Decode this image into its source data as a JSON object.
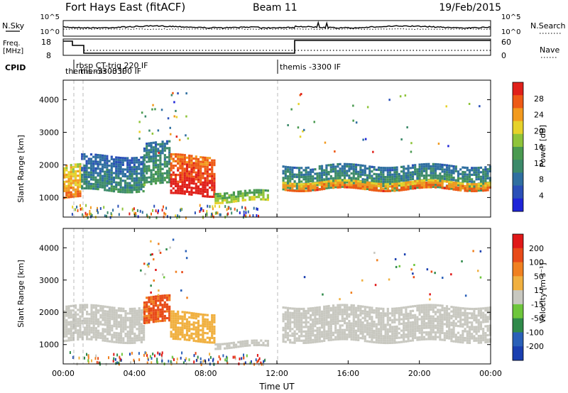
{
  "header": {
    "station": "Fort Hays East (fitACF)",
    "beam": "Beam 11",
    "date": "19/Feb/2015"
  },
  "noise_panel": {
    "left_label": "N.Sky",
    "left_ticks": [
      "10^5",
      "10^0"
    ],
    "right_label": "N.Search",
    "right_ticks": [
      "10^5",
      "10^0"
    ]
  },
  "freq_panel": {
    "left_label_line1": "Freq.",
    "left_label_line2": "[MHz]",
    "left_ticks": [
      "18",
      "8"
    ],
    "right_label": "Nave",
    "right_ticks": [
      "60",
      "0"
    ]
  },
  "cpid": {
    "label": "CPID",
    "entries": [
      {
        "time": 0.3,
        "text": "rbsp CT-trig 220 IF"
      },
      {
        "time": 0.0,
        "text": "themis -3300 IF"
      },
      {
        "time": 0.6,
        "text": "themis -3300 IF"
      },
      {
        "time": 12.0,
        "text": "themis -3300 IF"
      }
    ]
  },
  "x_axis": {
    "label": "Time UT",
    "ticks": [
      "00:00",
      "04:00",
      "08:00",
      "12:00",
      "16:00",
      "20:00",
      "00:00"
    ]
  },
  "power_panel": {
    "ylabel": "Slant Range [km]",
    "yticks": [
      "1000",
      "2000",
      "3000",
      "4000"
    ],
    "colorbar_label": "Power [dB]",
    "colorbar_ticks": [
      "28",
      "24",
      "20",
      "16",
      "12",
      "8",
      "4"
    ]
  },
  "velocity_panel": {
    "ylabel": "Slant Range [km]",
    "yticks": [
      "1000",
      "2000",
      "3000",
      "4000"
    ],
    "colorbar_label": "Velocity [m s⁻¹]",
    "colorbar_ticks": [
      "200",
      "100",
      "50",
      "15",
      "-15",
      "-50",
      "-100",
      "-200"
    ]
  },
  "colors": {
    "power_scale": [
      "#1e24d8",
      "#2a4fb8",
      "#2f6fa0",
      "#3c8a6a",
      "#4a9a50",
      "#8fc43a",
      "#e6d22a",
      "#f29a1e",
      "#ee5a16",
      "#e0201a"
    ],
    "velocity_scale": [
      "#1a3fb0",
      "#2a60b8",
      "#2f8a4a",
      "#6ec63c",
      "#c8c8c0",
      "#f0b040",
      "#f08020",
      "#e84a18",
      "#e01818"
    ]
  },
  "chart_data": [
    {
      "type": "heatmap",
      "title": "Power",
      "xlabel": "Time UT",
      "ylabel": "Slant Range [km]",
      "xlim": [
        0,
        24
      ],
      "ylim": [
        400,
        4600
      ],
      "colorbar": {
        "label": "Power [dB]",
        "range": [
          0,
          32
        ]
      },
      "regions": [
        {
          "t0": 0.0,
          "t1": 1.0,
          "r0": 1000,
          "r1": 2000,
          "level": 20
        },
        {
          "t0": 1.0,
          "t1": 4.5,
          "r0": 1200,
          "r1": 2300,
          "level": 6
        },
        {
          "t0": 4.5,
          "t1": 6.0,
          "r0": 1400,
          "r1": 2700,
          "level": 8
        },
        {
          "t0": 6.0,
          "t1": 8.5,
          "r0": 1100,
          "r1": 2300,
          "level": 26
        },
        {
          "t0": 8.5,
          "t1": 11.5,
          "r0": 900,
          "r1": 1200,
          "level": 14
        },
        {
          "t0": 12.3,
          "t1": 24.0,
          "r0": 1300,
          "r1": 2000,
          "level": 8
        },
        {
          "t0": 12.3,
          "t1": 24.0,
          "r0": 1250,
          "r1": 1500,
          "level": 22
        }
      ]
    },
    {
      "type": "heatmap",
      "title": "Velocity",
      "xlabel": "Time UT",
      "ylabel": "Slant Range [km]",
      "xlim": [
        0,
        24
      ],
      "ylim": [
        400,
        4600
      ],
      "colorbar": {
        "label": "Velocity [m s⁻¹]",
        "range": [
          -200,
          200
        ]
      },
      "regions": [
        {
          "t0": 0.0,
          "t1": 4.5,
          "r0": 1100,
          "r1": 2200,
          "level": 0
        },
        {
          "t0": 4.5,
          "t1": 6.0,
          "r0": 1700,
          "r1": 2500,
          "level": 120
        },
        {
          "t0": 6.0,
          "t1": 8.5,
          "r0": 1100,
          "r1": 2000,
          "level": 40
        },
        {
          "t0": 8.5,
          "t1": 11.5,
          "r0": 900,
          "r1": 1100,
          "level": 0
        },
        {
          "t0": 12.3,
          "t1": 24.0,
          "r0": 1100,
          "r1": 2200,
          "level": 0
        }
      ]
    }
  ]
}
